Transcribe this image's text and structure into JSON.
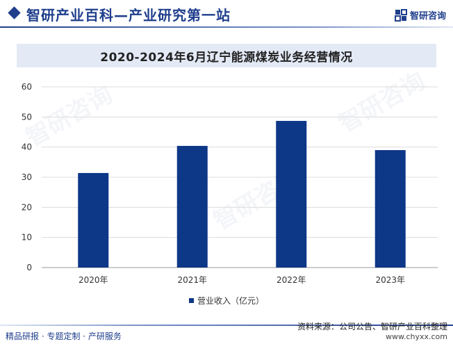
{
  "header": {
    "site_title": "智研产业百科—产业研究第一站",
    "brand": "智研咨询"
  },
  "chart_data": {
    "type": "bar",
    "title": "2020-2024年6月辽宁能源煤炭业务经营情况",
    "categories": [
      "2020年",
      "2021年",
      "2022年",
      "2023年"
    ],
    "series": [
      {
        "name": "营业收入（亿元）",
        "values": [
          31.4,
          40.4,
          48.7,
          39.0
        ]
      }
    ],
    "ylim": [
      0,
      60
    ],
    "yticks": [
      0,
      10,
      20,
      30,
      40,
      50,
      60
    ],
    "grid": true,
    "legend_position": "bottom",
    "bar_color": "#0d3787"
  },
  "footer": {
    "left": "精品研报 · 专题定制 · 产研服务",
    "source": "资料来源：公司公告、智研产业百科整理",
    "url": "www.chyxx.com"
  },
  "watermark": "智研咨询"
}
